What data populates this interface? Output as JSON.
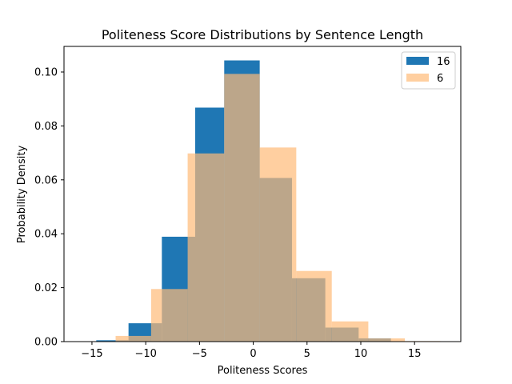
{
  "chart_data": {
    "type": "histogram",
    "title": "Politeness Score Distributions by Sentence Length",
    "xlabel": "Politeness Scores",
    "ylabel": "Probability Density",
    "xlim": [
      -17.6,
      19.3
    ],
    "ylim": [
      0,
      0.1095
    ],
    "xticks": [
      -15,
      -10,
      -5,
      0,
      5,
      10,
      15
    ],
    "yticks": [
      0.0,
      0.02,
      0.04,
      0.06,
      0.08,
      0.1
    ],
    "xtick_labels": [
      "−15",
      "−10",
      "−5",
      "0",
      "5",
      "10",
      "15"
    ],
    "ytick_labels": [
      "0.00",
      "0.02",
      "0.04",
      "0.06",
      "0.08",
      "0.10"
    ],
    "legend_position": "top-right",
    "series": [
      {
        "name": "16",
        "color": "#1f77b4",
        "alpha": 1.0,
        "bins": [
          {
            "x0": -14.6,
            "x1": -11.6,
            "density": 0.0005
          },
          {
            "x0": -11.6,
            "x1": -8.5,
            "density": 0.0068
          },
          {
            "x0": -8.5,
            "x1": -5.4,
            "density": 0.0389
          },
          {
            "x0": -5.4,
            "x1": -2.7,
            "density": 0.0868
          },
          {
            "x0": -2.7,
            "x1": 0.6,
            "density": 0.1043
          },
          {
            "x0": 0.6,
            "x1": 3.6,
            "density": 0.0607
          },
          {
            "x0": 3.6,
            "x1": 6.7,
            "density": 0.0235
          },
          {
            "x0": 6.7,
            "x1": 9.8,
            "density": 0.0052
          },
          {
            "x0": 9.8,
            "x1": 12.8,
            "density": 0.0012
          }
        ]
      },
      {
        "name": "6",
        "color": "#ffbb78",
        "alpha": 0.7,
        "bins": [
          {
            "x0": -12.8,
            "x1": -9.5,
            "density": 0.0021
          },
          {
            "x0": -9.5,
            "x1": -6.1,
            "density": 0.0195
          },
          {
            "x0": -6.1,
            "x1": -2.7,
            "density": 0.0698
          },
          {
            "x0": -2.7,
            "x1": 0.6,
            "density": 0.0993
          },
          {
            "x0": 0.6,
            "x1": 4.0,
            "density": 0.072
          },
          {
            "x0": 4.0,
            "x1": 7.3,
            "density": 0.0262
          },
          {
            "x0": 7.3,
            "x1": 10.7,
            "density": 0.0075
          },
          {
            "x0": 10.7,
            "x1": 14.1,
            "density": 0.0012
          },
          {
            "x0": 14.1,
            "x1": 17.4,
            "density": 0.0002
          }
        ]
      }
    ]
  }
}
